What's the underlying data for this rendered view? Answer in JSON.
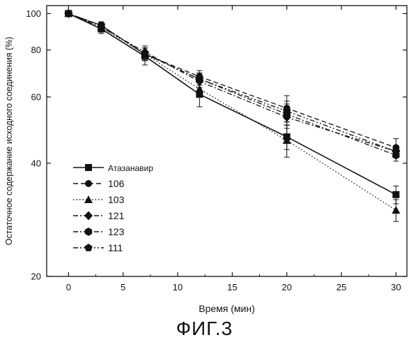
{
  "figure_caption": "ФИГ.3",
  "chart_data": {
    "type": "line",
    "xlabel": "Время (мин)",
    "ylabel": "Остаточное содержание исходного соединения (%)",
    "xlim": [
      -2,
      31
    ],
    "ylim": [
      20,
      105
    ],
    "y_scale": "log",
    "xticks": [
      0,
      5,
      10,
      15,
      20,
      25,
      30
    ],
    "yticks": [
      20,
      40,
      60,
      80,
      100
    ],
    "legend_position": "lower-left",
    "series": [
      {
        "name": "Атазанавир",
        "marker": "square",
        "dash": "solid",
        "x": [
          0,
          3,
          7,
          12,
          20,
          30
        ],
        "y": [
          100,
          91,
          77,
          61,
          47,
          33
        ],
        "err": [
          0,
          2.5,
          4,
          4.5,
          3.5,
          1.8
        ]
      },
      {
        "name": "106",
        "marker": "circle",
        "dash": "dashed",
        "x": [
          0,
          3,
          7,
          12,
          20,
          30
        ],
        "y": [
          100,
          93,
          78,
          68,
          56,
          44
        ],
        "err": [
          0,
          2,
          3,
          2.5,
          4.5,
          2.5
        ]
      },
      {
        "name": "103",
        "marker": "triangle",
        "dash": "dotted",
        "x": [
          0,
          3,
          7,
          12,
          20,
          30
        ],
        "y": [
          100,
          92,
          78,
          63,
          46,
          30
        ],
        "err": [
          0,
          2,
          3,
          3,
          4.5,
          2
        ]
      },
      {
        "name": "121",
        "marker": "diamond",
        "dash": "dashdot",
        "x": [
          0,
          3,
          7,
          12,
          20,
          30
        ],
        "y": [
          100,
          92,
          79,
          66,
          53,
          43
        ],
        "err": [
          0,
          2,
          3,
          2.5,
          3.5,
          1.5
        ]
      },
      {
        "name": "123",
        "marker": "hexagon",
        "dash": "dashdot",
        "x": [
          0,
          3,
          7,
          12,
          20,
          30
        ],
        "y": [
          100,
          93,
          78,
          67,
          54,
          42
        ],
        "err": [
          0,
          2,
          3,
          2.5,
          3.5,
          1.5
        ]
      },
      {
        "name": "111",
        "marker": "pentagon",
        "dash": "dashdotdot",
        "x": [
          0,
          3,
          7,
          12,
          20,
          30
        ],
        "y": [
          100,
          93,
          78,
          67,
          55,
          43
        ],
        "err": [
          0,
          2,
          3,
          2.5,
          3.5,
          1.5
        ]
      }
    ]
  }
}
